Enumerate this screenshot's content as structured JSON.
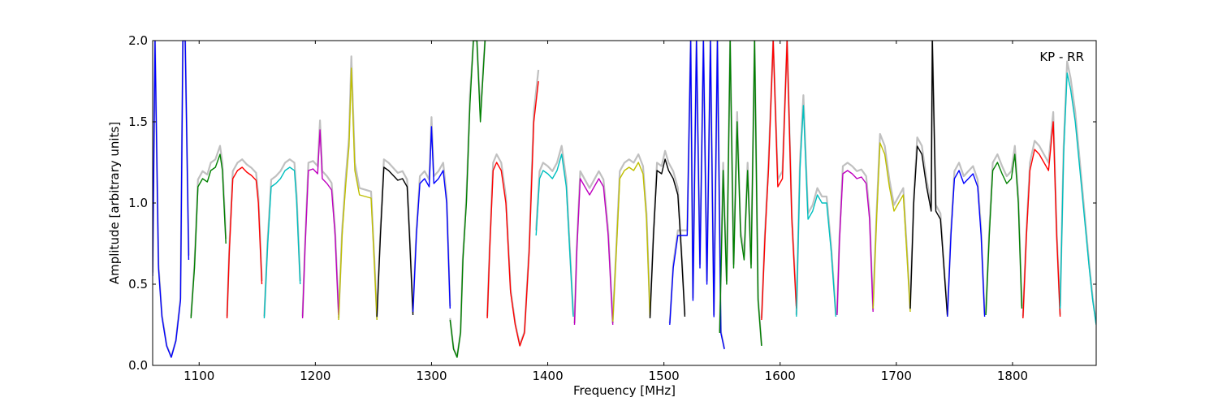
{
  "chart_data": {
    "type": "line",
    "title": "",
    "xlabel": "Frequency [MHz]",
    "ylabel": "Amplitude [arbitrary units]",
    "xlim": [
      1060,
      1872
    ],
    "ylim": [
      0.0,
      2.0
    ],
    "grid": false,
    "annotation": "KP - RR",
    "xticks": [
      "1100",
      "1200",
      "1300",
      "1400",
      "1500",
      "1600",
      "1700",
      "1800"
    ],
    "yticks": [
      "0.0",
      "0.5",
      "1.0",
      "1.5",
      "2.0"
    ],
    "reference_color": "#c0c0c0",
    "series": [
      {
        "color": "#0000ff",
        "x": [
          1060,
          1062,
          1065,
          1068,
          1072,
          1076,
          1080,
          1084,
          1086,
          1088,
          1091
        ],
        "y": [
          0.55,
          2.0,
          0.6,
          0.3,
          0.12,
          0.05,
          0.15,
          0.4,
          2.0,
          2.0,
          0.65
        ]
      },
      {
        "color": "#008000",
        "x": [
          1093,
          1096,
          1099,
          1103,
          1107,
          1110,
          1114,
          1118,
          1120,
          1123
        ],
        "y": [
          0.29,
          0.6,
          1.1,
          1.15,
          1.13,
          1.2,
          1.22,
          1.3,
          1.2,
          0.75
        ]
      },
      {
        "color": "#ff0000",
        "x": [
          1124,
          1126,
          1129,
          1133,
          1137,
          1141,
          1145,
          1149,
          1151,
          1154
        ],
        "y": [
          0.29,
          0.7,
          1.15,
          1.2,
          1.22,
          1.19,
          1.17,
          1.14,
          1.0,
          0.5
        ]
      },
      {
        "color": "#00bfbf",
        "x": [
          1156,
          1159,
          1162,
          1166,
          1170,
          1174,
          1178,
          1182,
          1184,
          1187
        ],
        "y": [
          0.29,
          0.75,
          1.1,
          1.12,
          1.15,
          1.2,
          1.22,
          1.2,
          1.0,
          0.5
        ]
      },
      {
        "color": "#bf00bf",
        "x": [
          1189,
          1191,
          1194,
          1198,
          1202,
          1204,
          1206,
          1210,
          1214,
          1217,
          1220
        ],
        "y": [
          0.29,
          0.7,
          1.2,
          1.21,
          1.18,
          1.45,
          1.15,
          1.12,
          1.08,
          0.8,
          0.31
        ]
      },
      {
        "color": "#bfbf00",
        "x": [
          1220,
          1223,
          1226,
          1229,
          1231,
          1234,
          1238,
          1243,
          1248,
          1251,
          1253
        ],
        "y": [
          0.28,
          0.8,
          1.1,
          1.35,
          1.83,
          1.2,
          1.05,
          1.04,
          1.03,
          0.6,
          0.28
        ]
      },
      {
        "color": "#000000",
        "x": [
          1253,
          1256,
          1259,
          1263,
          1267,
          1271,
          1275,
          1279,
          1281,
          1284
        ],
        "y": [
          0.3,
          0.8,
          1.22,
          1.2,
          1.17,
          1.14,
          1.15,
          1.1,
          0.8,
          0.31
        ]
      },
      {
        "color": "#0000ff",
        "x": [
          1284,
          1287,
          1290,
          1294,
          1298,
          1300,
          1302,
          1306,
          1310,
          1313,
          1316
        ],
        "y": [
          0.33,
          0.8,
          1.12,
          1.15,
          1.1,
          1.47,
          1.12,
          1.15,
          1.2,
          1.0,
          0.35
        ]
      },
      {
        "color": "#008000",
        "x": [
          1316,
          1319,
          1322,
          1325,
          1327,
          1330,
          1333,
          1336,
          1339,
          1342,
          1346
        ],
        "y": [
          0.28,
          0.1,
          0.05,
          0.2,
          0.65,
          1.0,
          1.6,
          2.0,
          2.0,
          1.5,
          2.0
        ]
      },
      {
        "color": "#ff0000",
        "x": [
          1348,
          1350,
          1353,
          1356,
          1360,
          1364,
          1368,
          1372,
          1376,
          1380,
          1384,
          1388,
          1392
        ],
        "y": [
          0.29,
          0.7,
          1.2,
          1.25,
          1.2,
          1.0,
          0.45,
          0.25,
          0.12,
          0.2,
          0.7,
          1.5,
          1.75
        ]
      },
      {
        "color": "#00bfbf",
        "x": [
          1390,
          1393,
          1396,
          1400,
          1404,
          1408,
          1412,
          1416,
          1419,
          1422
        ],
        "y": [
          0.8,
          1.15,
          1.2,
          1.18,
          1.15,
          1.2,
          1.3,
          1.1,
          0.7,
          0.3
        ]
      },
      {
        "color": "#bf00bf",
        "x": [
          1423,
          1425,
          1428,
          1432,
          1436,
          1440,
          1444,
          1448,
          1452,
          1456
        ],
        "y": [
          0.25,
          0.7,
          1.15,
          1.1,
          1.05,
          1.1,
          1.15,
          1.1,
          0.8,
          0.25
        ]
      },
      {
        "color": "#bfbf00",
        "x": [
          1456,
          1459,
          1462,
          1466,
          1470,
          1474,
          1478,
          1482,
          1485,
          1488
        ],
        "y": [
          0.27,
          0.7,
          1.15,
          1.2,
          1.22,
          1.2,
          1.25,
          1.18,
          0.9,
          0.3
        ]
      },
      {
        "color": "#000000",
        "x": [
          1488,
          1491,
          1494,
          1498,
          1501,
          1504,
          1508,
          1512,
          1515,
          1518
        ],
        "y": [
          0.29,
          0.8,
          1.2,
          1.18,
          1.27,
          1.2,
          1.15,
          1.05,
          0.7,
          0.3
        ]
      },
      {
        "color": "#0000ff",
        "x": [
          1505,
          1508,
          1512,
          1516,
          1520,
          1523,
          1525,
          1528,
          1531,
          1534,
          1537,
          1540,
          1543,
          1546,
          1549,
          1552
        ],
        "y": [
          0.25,
          0.6,
          0.8,
          0.8,
          0.8,
          2.0,
          0.4,
          2.0,
          0.6,
          2.0,
          0.5,
          2.0,
          0.3,
          2.0,
          0.2,
          0.1
        ]
      },
      {
        "color": "#008000",
        "x": [
          1548,
          1551,
          1554,
          1557,
          1560,
          1563,
          1566,
          1569,
          1572,
          1575,
          1578,
          1581,
          1584
        ],
        "y": [
          0.2,
          1.2,
          0.5,
          2.0,
          0.6,
          1.5,
          0.8,
          0.65,
          1.2,
          0.6,
          2.0,
          0.4,
          0.12
        ]
      },
      {
        "color": "#ff0000",
        "x": [
          1584,
          1587,
          1590,
          1594,
          1598,
          1602,
          1606,
          1610,
          1614
        ],
        "y": [
          0.28,
          0.8,
          1.2,
          2.0,
          1.1,
          1.15,
          2.0,
          0.9,
          0.35
        ]
      },
      {
        "color": "#00bfbf",
        "x": [
          1614,
          1617,
          1620,
          1624,
          1628,
          1632,
          1636,
          1640,
          1644,
          1648
        ],
        "y": [
          0.3,
          1.2,
          1.6,
          0.9,
          0.95,
          1.05,
          1.0,
          1.0,
          0.7,
          0.3
        ]
      },
      {
        "color": "#bf00bf",
        "x": [
          1649,
          1651,
          1654,
          1658,
          1662,
          1666,
          1670,
          1674,
          1677,
          1680
        ],
        "y": [
          0.31,
          0.75,
          1.18,
          1.2,
          1.18,
          1.15,
          1.16,
          1.12,
          0.9,
          0.33
        ]
      },
      {
        "color": "#bfbf00",
        "x": [
          1680,
          1683,
          1686,
          1690,
          1694,
          1698,
          1702,
          1706,
          1709,
          1712
        ],
        "y": [
          0.35,
          0.9,
          1.37,
          1.3,
          1.1,
          0.95,
          1.0,
          1.05,
          0.7,
          0.33
        ]
      },
      {
        "color": "#000000",
        "x": [
          1712,
          1715,
          1718,
          1722,
          1726,
          1730,
          1731,
          1734,
          1738,
          1741,
          1744
        ],
        "y": [
          0.35,
          1.0,
          1.35,
          1.3,
          1.1,
          0.95,
          2.0,
          0.95,
          0.9,
          0.6,
          0.3
        ]
      },
      {
        "color": "#0000ff",
        "x": [
          1744,
          1747,
          1750,
          1754,
          1758,
          1762,
          1766,
          1770,
          1773,
          1776
        ],
        "y": [
          0.3,
          0.8,
          1.15,
          1.2,
          1.12,
          1.15,
          1.18,
          1.1,
          0.8,
          0.3
        ]
      },
      {
        "color": "#008000",
        "x": [
          1777,
          1780,
          1783,
          1787,
          1791,
          1795,
          1799,
          1802,
          1805,
          1808
        ],
        "y": [
          0.31,
          0.8,
          1.2,
          1.25,
          1.18,
          1.12,
          1.15,
          1.3,
          1.0,
          0.35
        ]
      },
      {
        "color": "#ff0000",
        "x": [
          1809,
          1812,
          1815,
          1819,
          1823,
          1827,
          1831,
          1835,
          1838,
          1841
        ],
        "y": [
          0.29,
          0.8,
          1.2,
          1.33,
          1.3,
          1.25,
          1.2,
          1.5,
          0.8,
          0.3
        ]
      },
      {
        "color": "#00bfbf",
        "x": [
          1841,
          1844,
          1847,
          1850,
          1854,
          1858,
          1862,
          1866,
          1869,
          1872
        ],
        "y": [
          0.35,
          1.3,
          1.8,
          1.7,
          1.5,
          1.2,
          0.9,
          0.6,
          0.4,
          0.25
        ]
      }
    ]
  }
}
